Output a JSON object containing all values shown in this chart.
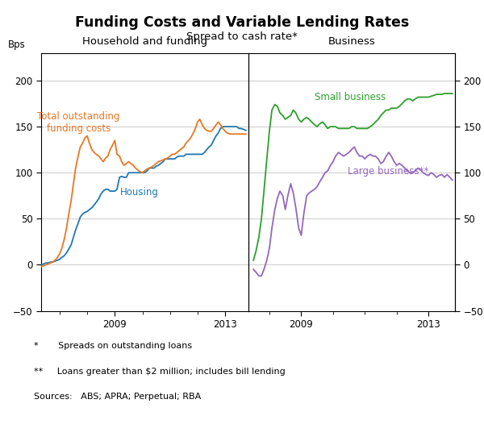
{
  "title": "Funding Costs and Variable Lending Rates",
  "subtitle": "Spread to cash rate*",
  "left_panel_title": "Household and funding",
  "right_panel_title": "Business",
  "ylabel_left": "Bps",
  "ylabel_right": "Bps",
  "ylim": [
    -50,
    230
  ],
  "yticks": [
    -50,
    0,
    50,
    100,
    150,
    200
  ],
  "footnote1": "*       Spreads on outstanding loans",
  "footnote2": "**     Loans greater than $2 million; includes bill lending",
  "footnote3": "Sources:   ABS; APRA; Perpetual; RBA",
  "colors": {
    "orange": "#E87722",
    "blue": "#1F77B4",
    "green": "#2CA02C",
    "purple": "#9467BD"
  },
  "left_xlim": [
    2006.33,
    2013.83
  ],
  "right_xlim": [
    2007.33,
    2013.83
  ],
  "housing_x": [
    2006.33,
    2006.42,
    2006.5,
    2006.58,
    2006.67,
    2006.75,
    2006.83,
    2006.92,
    2007.0,
    2007.08,
    2007.17,
    2007.25,
    2007.33,
    2007.42,
    2007.5,
    2007.58,
    2007.67,
    2007.75,
    2007.83,
    2007.92,
    2008.0,
    2008.08,
    2008.17,
    2008.25,
    2008.33,
    2008.42,
    2008.5,
    2008.58,
    2008.67,
    2008.75,
    2008.83,
    2008.92,
    2009.0,
    2009.08,
    2009.17,
    2009.25,
    2009.33,
    2009.42,
    2009.5,
    2009.58,
    2009.67,
    2009.75,
    2009.83,
    2009.92,
    2010.0,
    2010.08,
    2010.17,
    2010.25,
    2010.33,
    2010.42,
    2010.5,
    2010.58,
    2010.67,
    2010.75,
    2010.83,
    2010.92,
    2011.0,
    2011.08,
    2011.17,
    2011.25,
    2011.33,
    2011.42,
    2011.5,
    2011.58,
    2011.67,
    2011.75,
    2011.83,
    2011.92,
    2012.0,
    2012.08,
    2012.17,
    2012.25,
    2012.33,
    2012.42,
    2012.5,
    2012.58,
    2012.67,
    2012.75,
    2012.83,
    2012.92,
    2013.0,
    2013.08,
    2013.17,
    2013.25,
    2013.33,
    2013.42,
    2013.5,
    2013.58,
    2013.67,
    2013.75
  ],
  "housing_y": [
    0,
    1,
    2,
    2,
    3,
    3,
    4,
    5,
    6,
    8,
    10,
    13,
    17,
    22,
    30,
    38,
    45,
    52,
    55,
    57,
    58,
    60,
    62,
    65,
    68,
    72,
    77,
    80,
    82,
    82,
    80,
    80,
    80,
    82,
    95,
    96,
    95,
    95,
    100,
    100,
    100,
    100,
    100,
    100,
    100,
    100,
    102,
    105,
    105,
    105,
    107,
    108,
    110,
    112,
    115,
    115,
    115,
    115,
    115,
    117,
    118,
    118,
    118,
    120,
    120,
    120,
    120,
    120,
    120,
    120,
    120,
    122,
    125,
    128,
    130,
    135,
    140,
    143,
    148,
    150,
    150,
    150,
    150,
    150,
    150,
    150,
    148,
    148,
    147,
    146
  ],
  "funding_x": [
    2006.33,
    2006.42,
    2006.5,
    2006.58,
    2006.67,
    2006.75,
    2006.83,
    2006.92,
    2007.0,
    2007.08,
    2007.17,
    2007.25,
    2007.33,
    2007.42,
    2007.5,
    2007.58,
    2007.67,
    2007.75,
    2007.83,
    2007.92,
    2008.0,
    2008.08,
    2008.17,
    2008.25,
    2008.33,
    2008.42,
    2008.5,
    2008.58,
    2008.67,
    2008.75,
    2008.83,
    2008.92,
    2009.0,
    2009.08,
    2009.17,
    2009.25,
    2009.33,
    2009.42,
    2009.5,
    2009.58,
    2009.67,
    2009.75,
    2009.83,
    2009.92,
    2010.0,
    2010.08,
    2010.17,
    2010.25,
    2010.33,
    2010.42,
    2010.5,
    2010.58,
    2010.67,
    2010.75,
    2010.83,
    2010.92,
    2011.0,
    2011.08,
    2011.17,
    2011.25,
    2011.33,
    2011.42,
    2011.5,
    2011.58,
    2011.67,
    2011.75,
    2011.83,
    2011.92,
    2012.0,
    2012.08,
    2012.17,
    2012.25,
    2012.33,
    2012.42,
    2012.5,
    2012.58,
    2012.67,
    2012.75,
    2012.83,
    2012.92,
    2013.0,
    2013.08,
    2013.17,
    2013.25,
    2013.33,
    2013.42,
    2013.5,
    2013.58,
    2013.67,
    2013.75
  ],
  "funding_y": [
    -2,
    -1,
    0,
    1,
    2,
    3,
    5,
    8,
    12,
    18,
    28,
    40,
    55,
    70,
    88,
    105,
    118,
    128,
    132,
    138,
    140,
    132,
    125,
    122,
    120,
    118,
    115,
    112,
    116,
    118,
    125,
    130,
    135,
    120,
    118,
    112,
    108,
    110,
    112,
    110,
    108,
    105,
    103,
    101,
    100,
    102,
    104,
    105,
    106,
    108,
    110,
    112,
    113,
    114,
    115,
    116,
    118,
    120,
    120,
    122,
    124,
    126,
    128,
    132,
    135,
    138,
    142,
    148,
    155,
    158,
    152,
    148,
    146,
    145,
    145,
    148,
    152,
    155,
    152,
    148,
    145,
    143,
    142,
    142,
    142,
    142,
    142,
    142,
    142,
    142
  ],
  "small_x": [
    2007.5,
    2007.58,
    2007.67,
    2007.75,
    2007.83,
    2007.92,
    2008.0,
    2008.08,
    2008.17,
    2008.25,
    2008.33,
    2008.42,
    2008.5,
    2008.58,
    2008.67,
    2008.75,
    2008.83,
    2008.92,
    2009.0,
    2009.08,
    2009.17,
    2009.25,
    2009.33,
    2009.42,
    2009.5,
    2009.58,
    2009.67,
    2009.75,
    2009.83,
    2009.92,
    2010.0,
    2010.08,
    2010.17,
    2010.25,
    2010.33,
    2010.42,
    2010.5,
    2010.58,
    2010.67,
    2010.75,
    2010.83,
    2010.92,
    2011.0,
    2011.08,
    2011.17,
    2011.25,
    2011.33,
    2011.42,
    2011.5,
    2011.58,
    2011.67,
    2011.75,
    2011.83,
    2011.92,
    2012.0,
    2012.08,
    2012.17,
    2012.25,
    2012.33,
    2012.42,
    2012.5,
    2012.58,
    2012.67,
    2012.75,
    2012.83,
    2012.92,
    2013.0,
    2013.08,
    2013.17,
    2013.25,
    2013.33,
    2013.42,
    2013.5,
    2013.58,
    2013.67,
    2013.75
  ],
  "small_y": [
    5,
    15,
    30,
    50,
    80,
    115,
    145,
    168,
    174,
    172,
    165,
    162,
    158,
    160,
    162,
    168,
    165,
    158,
    155,
    158,
    160,
    158,
    155,
    152,
    150,
    153,
    155,
    152,
    148,
    150,
    150,
    150,
    148,
    148,
    148,
    148,
    148,
    150,
    150,
    148,
    148,
    148,
    148,
    148,
    150,
    152,
    155,
    158,
    162,
    165,
    168,
    168,
    170,
    170,
    170,
    172,
    175,
    178,
    180,
    180,
    178,
    180,
    182,
    182,
    182,
    182,
    182,
    183,
    184,
    185,
    185,
    185,
    186,
    186,
    186,
    186
  ],
  "large_x": [
    2007.5,
    2007.58,
    2007.67,
    2007.75,
    2007.83,
    2007.92,
    2008.0,
    2008.08,
    2008.17,
    2008.25,
    2008.33,
    2008.42,
    2008.5,
    2008.58,
    2008.67,
    2008.75,
    2008.83,
    2008.92,
    2009.0,
    2009.08,
    2009.17,
    2009.25,
    2009.33,
    2009.42,
    2009.5,
    2009.58,
    2009.67,
    2009.75,
    2009.83,
    2009.92,
    2010.0,
    2010.08,
    2010.17,
    2010.25,
    2010.33,
    2010.42,
    2010.5,
    2010.58,
    2010.67,
    2010.75,
    2010.83,
    2010.92,
    2011.0,
    2011.08,
    2011.17,
    2011.25,
    2011.33,
    2011.42,
    2011.5,
    2011.58,
    2011.67,
    2011.75,
    2011.83,
    2011.92,
    2012.0,
    2012.08,
    2012.17,
    2012.25,
    2012.33,
    2012.42,
    2012.5,
    2012.58,
    2012.67,
    2012.75,
    2012.83,
    2012.92,
    2013.0,
    2013.08,
    2013.17,
    2013.25,
    2013.33,
    2013.42,
    2013.5,
    2013.58,
    2013.67,
    2013.75
  ],
  "large_y": [
    -5,
    -8,
    -12,
    -12,
    -5,
    5,
    18,
    40,
    60,
    72,
    80,
    75,
    60,
    75,
    88,
    78,
    62,
    40,
    32,
    55,
    75,
    78,
    80,
    82,
    85,
    90,
    95,
    100,
    102,
    108,
    112,
    118,
    122,
    120,
    118,
    120,
    122,
    125,
    128,
    122,
    118,
    118,
    115,
    118,
    120,
    118,
    118,
    115,
    110,
    112,
    118,
    122,
    118,
    112,
    108,
    110,
    108,
    105,
    102,
    100,
    100,
    102,
    105,
    103,
    100,
    98,
    97,
    100,
    98,
    95,
    97,
    98,
    95,
    98,
    95,
    92
  ]
}
